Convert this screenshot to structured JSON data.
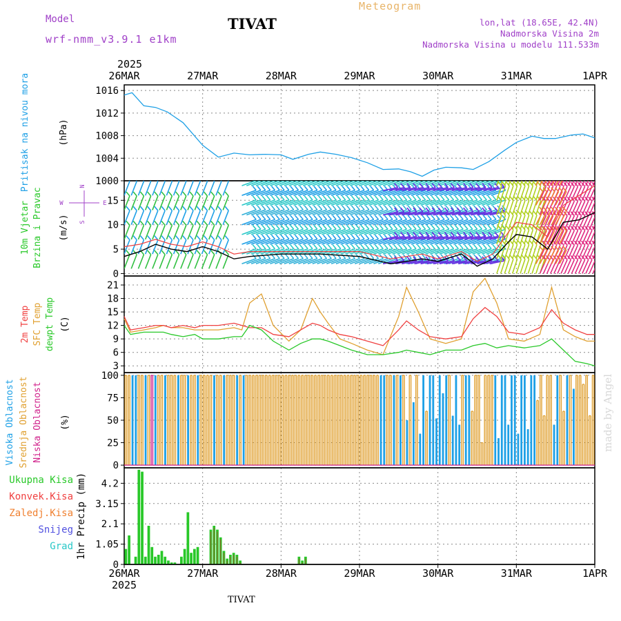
{
  "header": {
    "model_label": "Model",
    "model_name": "wrf-nmm_v3.9.1  e1km",
    "station_title": "TIVAT",
    "meteogram_label": "Meteogram",
    "lonlat": "lon,lat (18.65E, 42.4N)",
    "altitude": "Nadmorska Visina 2m",
    "altitude_model": "Nadmorska Visina u modelu 111.533m"
  },
  "footer": {
    "station": "TIVAT",
    "watermark": "made by Angel"
  },
  "time_axis": {
    "year": "2025",
    "labels": [
      "26MAR",
      "27MAR",
      "28MAR",
      "29MAR",
      "30MAR",
      "31MAR",
      "1APR"
    ]
  },
  "colors": {
    "pressure": "#1ea0e6",
    "wind_speed": "#000000",
    "wind_gust": "#f04040",
    "temp_2m": "#f04040",
    "temp_sfc": "#e0a030",
    "dewpoint": "#28c828",
    "cloud_high": "#1ea0e6",
    "cloud_mid": "#e0a030",
    "cloud_low": "#d0208a",
    "precip_total": "#28c828",
    "precip_conv": "#f04040",
    "precip_frozen": "#f08030",
    "snow": "#5050e0",
    "hail": "#28c8c8"
  },
  "chart_data": [
    {
      "type": "line",
      "panel": "pressure",
      "ylabel_name": "Pritisak na nivou mora",
      "ylabel_unit": "(hPa)",
      "ylim": [
        1000,
        1017
      ],
      "yticks": [
        1000,
        1004,
        1008,
        1012,
        1016
      ],
      "x_days": [
        0,
        0.1,
        0.25,
        0.4,
        0.55,
        0.75,
        1.0,
        1.2,
        1.4,
        1.6,
        1.8,
        2.0,
        2.15,
        2.35,
        2.5,
        2.7,
        2.9,
        3.1,
        3.3,
        3.5,
        3.65,
        3.8,
        3.95,
        4.1,
        4.3,
        4.45,
        4.65,
        4.85,
        5.0,
        5.2,
        5.35,
        5.5,
        5.7,
        5.85,
        6.0
      ],
      "series": [
        {
          "name": "",
          "values": [
            1015.2,
            1015.6,
            1013.3,
            1013.0,
            1012.2,
            1010.3,
            1006.3,
            1004.2,
            1004.9,
            1004.6,
            1004.7,
            1004.6,
            1003.8,
            1004.7,
            1005.1,
            1004.7,
            1004.1,
            1003.2,
            1002.0,
            1002.1,
            1001.6,
            1000.8,
            1001.9,
            1002.4,
            1002.3,
            1002.0,
            1003.4,
            1005.4,
            1006.8,
            1007.9,
            1007.5,
            1007.5,
            1008.1,
            1008.3,
            1007.6
          ]
        }
      ]
    },
    {
      "type": "line",
      "panel": "wind",
      "ylabel_name": "10m Vjetar",
      "ylabel_name2": "Brzina i Pravac",
      "ylabel_unit": "(m/s)",
      "compass": [
        "N",
        "W",
        "E",
        "S"
      ],
      "ylim": [
        -0.5,
        19
      ],
      "yticks": [
        0,
        5,
        10,
        15
      ],
      "x_days": [
        0,
        0.2,
        0.4,
        0.6,
        0.8,
        1.0,
        1.2,
        1.4,
        1.6,
        2.0,
        2.5,
        3.0,
        3.4,
        3.8,
        4.0,
        4.3,
        4.5,
        4.7,
        4.9,
        5.0,
        5.2,
        5.4,
        5.6,
        5.8,
        6.0
      ],
      "series": [
        {
          "name": "",
          "values": [
            3.5,
            4.5,
            6.0,
            5.0,
            4.5,
            5.5,
            4.5,
            3.0,
            3.5,
            4.0,
            4.0,
            3.5,
            2.0,
            3.0,
            2.5,
            4.0,
            1.5,
            3.0,
            6.5,
            8.0,
            7.5,
            5.0,
            10.5,
            11.0,
            12.5
          ]
        },
        {
          "name": "",
          "values": [
            5.5,
            6.0,
            7.0,
            6.0,
            5.5,
            6.5,
            5.5,
            4.0,
            4.5,
            4.5,
            4.5,
            4.5,
            3.0,
            4.0,
            3.0,
            4.5,
            2.5,
            4.0,
            8.5,
            10.5,
            10.0,
            7.5,
            14.0,
            16.0,
            18.0
          ]
        }
      ]
    },
    {
      "type": "line",
      "panel": "temperature",
      "ylabel_name": "2m Temp",
      "ylabel_name2": "SFC Temp",
      "ylabel_name3": "dewpt Temp",
      "ylabel_unit": "(C)",
      "ylim": [
        1.5,
        23
      ],
      "yticks": [
        3,
        6,
        9,
        12,
        15,
        18,
        21
      ],
      "x_days": [
        0,
        0.08,
        0.25,
        0.4,
        0.5,
        0.6,
        0.75,
        0.9,
        1.0,
        1.2,
        1.4,
        1.5,
        1.6,
        1.75,
        1.9,
        2.1,
        2.25,
        2.4,
        2.5,
        2.6,
        2.75,
        2.9,
        3.1,
        3.3,
        3.5,
        3.6,
        3.75,
        3.9,
        4.1,
        4.3,
        4.45,
        4.6,
        4.75,
        4.9,
        5.1,
        5.3,
        5.45,
        5.6,
        5.75,
        5.9,
        6.0
      ],
      "series": [
        {
          "name": "",
          "values": [
            14.0,
            11.0,
            11.5,
            12.0,
            12.0,
            11.5,
            12.0,
            11.5,
            12.0,
            12.0,
            12.5,
            12.0,
            11.5,
            11.5,
            10.0,
            9.5,
            11.0,
            12.5,
            12.0,
            11.0,
            10.0,
            9.5,
            8.5,
            7.5,
            11.0,
            13.0,
            11.0,
            9.5,
            9.0,
            9.5,
            13.5,
            16.0,
            14.0,
            10.5,
            10.0,
            11.5,
            15.5,
            12.5,
            11.0,
            10.0,
            10.0
          ]
        },
        {
          "name": "",
          "values": [
            13.5,
            10.5,
            11.0,
            11.5,
            12.0,
            11.5,
            11.5,
            11.0,
            11.0,
            11.0,
            11.5,
            11.0,
            17.0,
            19.0,
            12.0,
            8.5,
            11.0,
            18.0,
            15.0,
            12.5,
            9.0,
            8.0,
            6.5,
            5.5,
            14.0,
            20.5,
            15.0,
            9.0,
            8.0,
            9.0,
            19.5,
            22.5,
            17.0,
            9.0,
            8.5,
            10.0,
            20.5,
            11.0,
            9.5,
            8.5,
            8.5
          ]
        },
        {
          "name": "",
          "values": [
            12.0,
            10.0,
            10.5,
            10.5,
            10.5,
            10.0,
            9.5,
            10.0,
            9.0,
            9.0,
            9.5,
            9.5,
            12.0,
            11.0,
            8.5,
            6.5,
            8.0,
            9.0,
            9.0,
            8.5,
            7.5,
            6.5,
            5.5,
            5.5,
            6.0,
            6.5,
            6.0,
            5.5,
            6.5,
            6.5,
            7.5,
            8.0,
            7.0,
            7.5,
            7.0,
            7.5,
            9.0,
            6.5,
            4.0,
            3.5,
            3.0
          ]
        }
      ]
    },
    {
      "type": "bar",
      "panel": "clouds",
      "ylabel_name": "Visoka Oblacnost",
      "ylabel_name2": "Srednja Oblacnost",
      "ylabel_name3": "Niska Oblacnost",
      "ylabel_unit": "(%)",
      "ylim": [
        -3,
        103
      ],
      "yticks": [
        0,
        25,
        50,
        75,
        100
      ],
      "note": "hourly bars: 1=low(Niska),2=mid(Srednja),3=high(Visoka) dominant; value 100 unless listed",
      "hours": 144,
      "dominant_layer": "223322321322322232232232222322322232322222222222222222222222222222222222222222332232323232332333333233323322222223333333333333222223322323222",
      "partial_levels": [
        [
          86,
          50
        ],
        [
          88,
          70
        ],
        [
          90,
          35
        ],
        [
          92,
          60
        ],
        [
          95,
          52
        ],
        [
          97,
          80
        ],
        [
          100,
          55
        ],
        [
          102,
          45
        ],
        [
          106,
          60
        ],
        [
          109,
          25
        ],
        [
          114,
          30
        ],
        [
          117,
          45
        ],
        [
          120,
          35
        ],
        [
          123,
          40
        ],
        [
          126,
          72
        ],
        [
          128,
          55
        ],
        [
          131,
          45
        ],
        [
          134,
          60
        ],
        [
          137,
          85
        ],
        [
          140,
          90
        ],
        [
          142,
          55
        ]
      ]
    },
    {
      "type": "bar",
      "panel": "precipitation",
      "ylabel_name": "1hr Precip (mm)",
      "legend": [
        "Ukupna Kisa",
        "Konvek.Kisa",
        "Zaledj.Kisa",
        "Snijeg",
        "Grad"
      ],
      "ylim": [
        0,
        5.0
      ],
      "yticks": [
        0,
        1.05,
        2.1,
        3.15,
        4.2
      ],
      "x_hours": [
        1,
        2,
        3,
        4,
        5,
        6,
        7,
        8,
        9,
        10,
        11,
        12,
        13,
        14,
        15,
        16,
        17,
        18,
        19,
        20,
        21,
        22,
        23,
        24,
        25,
        26,
        27,
        28,
        29,
        30,
        31,
        32,
        33,
        34,
        35,
        36,
        37,
        38,
        39,
        40,
        54,
        55,
        56
      ],
      "series": [
        {
          "name": "Ukupna Kisa",
          "values": [
            0.8,
            1.5,
            0.0,
            0.4,
            4.9,
            4.8,
            0.4,
            2.0,
            0.9,
            0.4,
            0.5,
            0.7,
            0.4,
            0.2,
            0.1,
            0.1,
            0.0,
            0.4,
            0.8,
            2.7,
            0.6,
            0.8,
            0.9,
            0.0,
            0.0,
            0.0,
            1.8,
            2.0,
            1.8,
            1.4,
            0.7,
            0.3,
            0.5,
            0.6,
            0.5,
            0.2,
            0.0,
            0.0,
            0.0,
            0.0,
            0.4,
            0.2,
            0.4
          ]
        },
        {
          "name": "Konvek.Kisa",
          "values": [
            0.0,
            0.0,
            0.0,
            0.0,
            0.0,
            0.0,
            0.0,
            0.0,
            0.0,
            0.0,
            0.0,
            0.0,
            0.0,
            0.0,
            0.0,
            0.0,
            0.0,
            0.0,
            0.0,
            0.0,
            0.0,
            0.0,
            0.0,
            0.0,
            0.0,
            0.0,
            1.7,
            1.9,
            1.7,
            1.3,
            0.6,
            0.2,
            0.4,
            0.5,
            0.4,
            0.1,
            0.0,
            0.0,
            0.0,
            0.0,
            0.3,
            0.1,
            0.3
          ]
        }
      ]
    }
  ]
}
